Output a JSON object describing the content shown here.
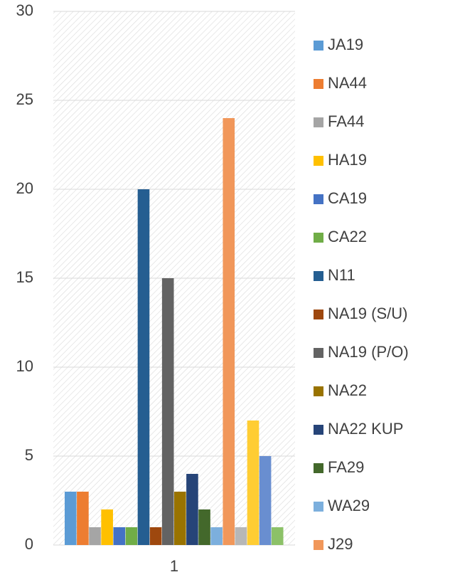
{
  "chart_data": {
    "type": "bar",
    "categories": [
      "1"
    ],
    "series": [
      {
        "name": "JA19",
        "color": "#5b9bd5",
        "values": [
          3
        ]
      },
      {
        "name": "NA44",
        "color": "#ed7d31",
        "values": [
          3
        ]
      },
      {
        "name": "FA44",
        "color": "#a5a5a5",
        "values": [
          1
        ]
      },
      {
        "name": "HA19",
        "color": "#ffc000",
        "values": [
          2
        ]
      },
      {
        "name": "CA19",
        "color": "#4472c4",
        "values": [
          1
        ]
      },
      {
        "name": "CA22",
        "color": "#70ad47",
        "values": [
          1
        ]
      },
      {
        "name": "N11",
        "color": "#255e91",
        "values": [
          20
        ]
      },
      {
        "name": "NA19 (S/U)",
        "color": "#9e480e",
        "values": [
          1
        ]
      },
      {
        "name": "NA19 (P/O)",
        "color": "#636363",
        "values": [
          15
        ]
      },
      {
        "name": "NA22",
        "color": "#997300",
        "values": [
          3
        ]
      },
      {
        "name": "NA22 KUP",
        "color": "#264478",
        "values": [
          4
        ]
      },
      {
        "name": "FA29",
        "color": "#43682b",
        "values": [
          2
        ]
      },
      {
        "name": "WA29",
        "color": "#7cafdd",
        "values": [
          1
        ]
      },
      {
        "name": "J29",
        "color": "#f1975a",
        "values": [
          24
        ]
      },
      {
        "name": null,
        "color": "#b7b7b7",
        "values": [
          1
        ]
      },
      {
        "name": null,
        "color": "#ffcd33",
        "values": [
          7
        ]
      },
      {
        "name": null,
        "color": "#698ed0",
        "values": [
          5
        ]
      },
      {
        "name": null,
        "color": "#8cc168",
        "values": [
          1
        ]
      }
    ],
    "ylim": [
      0,
      30
    ],
    "yticks": [
      0,
      5,
      10,
      15,
      20,
      25,
      30
    ],
    "grid": true,
    "legend": "right"
  }
}
